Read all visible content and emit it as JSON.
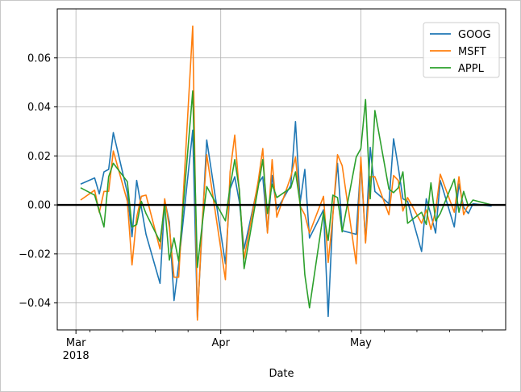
{
  "chart_data": {
    "type": "line",
    "title": "",
    "xlabel": "Date",
    "ylabel": "",
    "x_range": [
      "2018-02-25",
      "2018-06-01"
    ],
    "ylim": [
      -0.051,
      0.08
    ],
    "grid": true,
    "legend_position": "top-right",
    "zero_line": {
      "value": 0.0,
      "color": "#000000"
    },
    "x_ticks": [
      {
        "date": "2018-03-01",
        "label": "Mar",
        "sublabel": "2018"
      },
      {
        "date": "2018-04-01",
        "label": "Apr",
        "sublabel": ""
      },
      {
        "date": "2018-05-01",
        "label": "May",
        "sublabel": ""
      }
    ],
    "y_ticks": [
      {
        "value": -0.04,
        "label": "−0.04"
      },
      {
        "value": -0.02,
        "label": "−0.02"
      },
      {
        "value": 0.0,
        "label": "0.00"
      },
      {
        "value": 0.02,
        "label": "0.02"
      },
      {
        "value": 0.04,
        "label": "0.04"
      },
      {
        "value": 0.06,
        "label": "0.06"
      }
    ],
    "dates": [
      "2018-03-02",
      "2018-03-05",
      "2018-03-06",
      "2018-03-07",
      "2018-03-08",
      "2018-03-09",
      "2018-03-12",
      "2018-03-13",
      "2018-03-14",
      "2018-03-15",
      "2018-03-16",
      "2018-03-19",
      "2018-03-20",
      "2018-03-21",
      "2018-03-22",
      "2018-03-23",
      "2018-03-26",
      "2018-03-27",
      "2018-03-28",
      "2018-03-29",
      "2018-04-02",
      "2018-04-03",
      "2018-04-04",
      "2018-04-05",
      "2018-04-06",
      "2018-04-09",
      "2018-04-10",
      "2018-04-11",
      "2018-04-12",
      "2018-04-13",
      "2018-04-16",
      "2018-04-17",
      "2018-04-18",
      "2018-04-19",
      "2018-04-20",
      "2018-04-23",
      "2018-04-24",
      "2018-04-25",
      "2018-04-26",
      "2018-04-27",
      "2018-04-30",
      "2018-05-01",
      "2018-05-02",
      "2018-05-03",
      "2018-05-04",
      "2018-05-07",
      "2018-05-08",
      "2018-05-09",
      "2018-05-10",
      "2018-05-11",
      "2018-05-14",
      "2018-05-15",
      "2018-05-16",
      "2018-05-17",
      "2018-05-18",
      "2018-05-21",
      "2018-05-22",
      "2018-05-23",
      "2018-05-24",
      "2018-05-25",
      "2018-05-29"
    ],
    "series": [
      {
        "name": "GOOG",
        "color": "#1f77b4",
        "values": [
          0.0085,
          0.011,
          0.0045,
          0.0135,
          0.0145,
          0.0295,
          0.005,
          -0.013,
          0.01,
          -0.001,
          -0.012,
          -0.032,
          0.002,
          -0.007,
          -0.039,
          -0.024,
          0.0305,
          -0.046,
          -0.01,
          0.0265,
          -0.024,
          0.0065,
          0.0115,
          0.001,
          -0.018,
          0.0085,
          0.0115,
          -0.011,
          0.012,
          -0.002,
          0.008,
          0.034,
          0.001,
          0.0145,
          -0.0135,
          -0.002,
          -0.0455,
          -0.004,
          0.017,
          -0.0105,
          -0.012,
          0.0175,
          -0.015,
          0.0235,
          0.0055,
          0.0005,
          0.027,
          0.0155,
          0.0025,
          0.0015,
          -0.019,
          0.0025,
          -0.004,
          -0.0115,
          0.01,
          -0.009,
          0.0085,
          -0.001,
          -0.0035,
          0.0005,
          -0.0005
        ]
      },
      {
        "name": "MSFT",
        "color": "#ff7f0e",
        "values": [
          0.002,
          0.006,
          -0.003,
          0.0055,
          0.0055,
          0.022,
          0.0015,
          -0.0245,
          -0.005,
          0.0035,
          0.004,
          -0.018,
          0.0025,
          -0.009,
          -0.0295,
          -0.0295,
          0.073,
          -0.047,
          -0.008,
          0.0205,
          -0.0305,
          0.0135,
          0.0285,
          0.0045,
          -0.022,
          0.0095,
          0.023,
          -0.0115,
          0.0185,
          -0.005,
          0.0115,
          0.0195,
          -0.0005,
          -0.004,
          -0.0115,
          0.0035,
          -0.0235,
          -0.0045,
          0.0205,
          0.016,
          -0.024,
          0.0195,
          -0.0155,
          0.0115,
          0.0115,
          -0.004,
          0.012,
          0.01,
          -0.0025,
          0.003,
          -0.0075,
          -0.002,
          -0.01,
          -0.0025,
          0.0125,
          -0.003,
          0.0115,
          -0.004,
          0.0,
          0.0,
          0.0
        ]
      },
      {
        "name": "APPL",
        "color": "#2ca02c",
        "values": [
          0.007,
          0.004,
          -0.0025,
          -0.009,
          0.0115,
          0.017,
          0.0095,
          -0.009,
          -0.008,
          0.0015,
          -0.0035,
          -0.015,
          0.0,
          -0.0225,
          -0.0135,
          -0.023,
          0.0465,
          -0.0255,
          -0.0085,
          0.0075,
          -0.0065,
          0.0075,
          0.0185,
          0.006,
          -0.026,
          0.007,
          0.0185,
          -0.0035,
          0.0085,
          0.003,
          0.007,
          0.0135,
          0.0005,
          -0.0285,
          -0.042,
          -0.003,
          -0.0145,
          0.004,
          0.003,
          -0.011,
          0.0195,
          0.023,
          0.043,
          0.0025,
          0.0385,
          0.0065,
          0.005,
          0.007,
          0.0135,
          -0.0075,
          -0.003,
          -0.008,
          0.009,
          -0.0065,
          -0.0035,
          0.0105,
          -0.003,
          0.0055,
          -0.0005,
          0.002,
          0.0
        ]
      }
    ]
  }
}
